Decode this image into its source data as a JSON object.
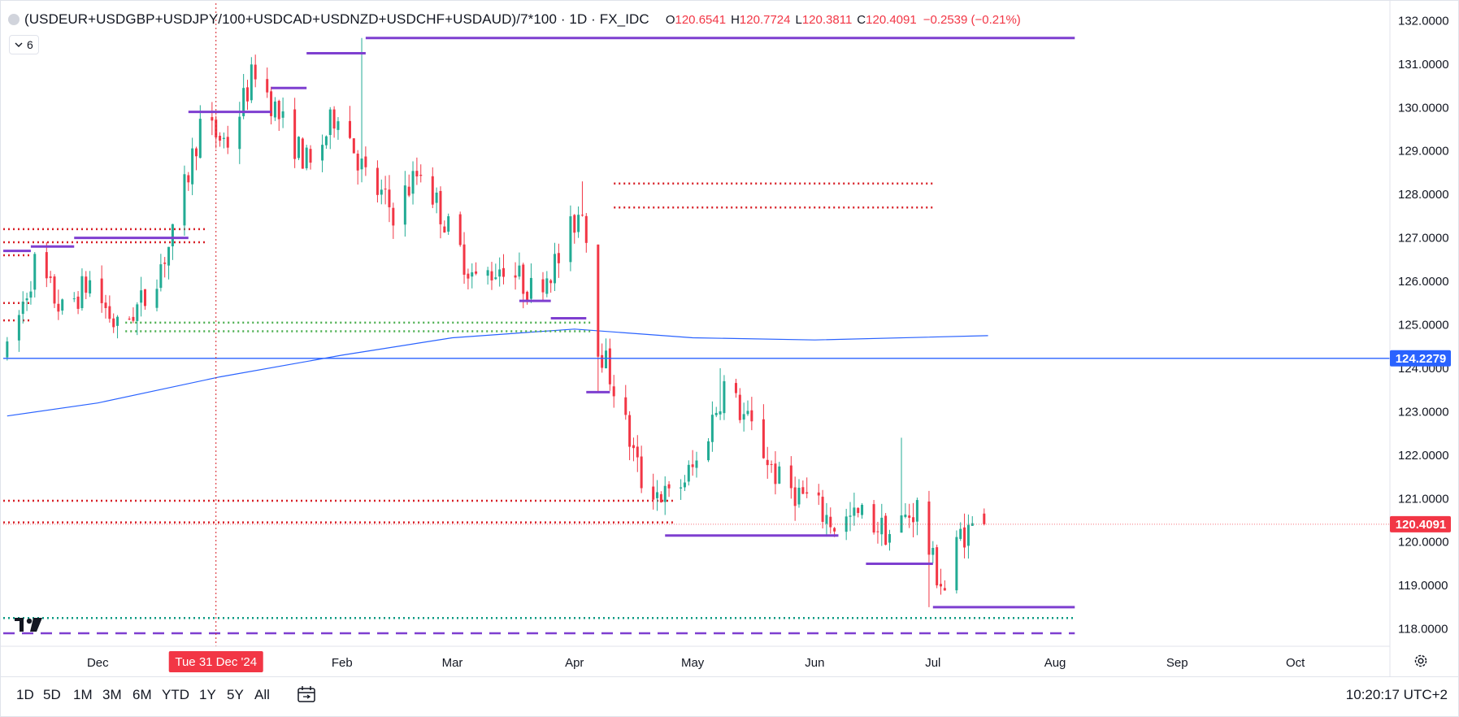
{
  "header": {
    "symbol": "(USDEUR+USDGBP+USDJPY/100+USDCAD+USDNZD+USDCHF+USDAUD)/7*100 · 1D · FX_IDC",
    "open_label": "O",
    "open": "120.6541",
    "high_label": "H",
    "high": "120.7724",
    "low_label": "L",
    "low": "120.3811",
    "close_label": "C",
    "close": "120.4091",
    "change": "−0.2539 (−0.21%)"
  },
  "indicators_button": {
    "icon": "chevron-down-icon",
    "count": "6"
  },
  "price_axis": {
    "labels": [
      "132.0000",
      "131.0000",
      "130.0000",
      "129.0000",
      "128.0000",
      "127.0000",
      "126.0000",
      "125.0000",
      "124.0000",
      "123.0000",
      "122.0000",
      "121.0000",
      "120.0000",
      "119.0000",
      "118.0000"
    ],
    "hline_label": "124.2279",
    "last_price_label": "120.4091"
  },
  "time_axis": {
    "labels": [
      "Dec",
      "Feb",
      "Mar",
      "Apr",
      "May",
      "Jun",
      "Jul",
      "Aug",
      "Sep",
      "Oct"
    ],
    "crosshair_label": "Tue 31 Dec '24"
  },
  "timeframes": [
    "1D",
    "5D",
    "1M",
    "3M",
    "6M",
    "YTD",
    "1Y",
    "5Y",
    "All"
  ],
  "clock": "10:20:17 UTC+2",
  "colors": {
    "up": "#22ab94",
    "down": "#f23645",
    "level": "#7e3fd0",
    "hline": "#2962ff",
    "ma": "#2962ff",
    "dot_red": "#d81f26",
    "dot_green": "#4caf50",
    "dot_teal": "#089981"
  },
  "chart_data": {
    "type": "candlestick",
    "title": "(USDEUR+USDGBP+USDJPY/100+USDCAD+USDNZD+USDCHF+USDAUD)/7*100",
    "interval": "1D",
    "ylim": [
      117.6,
      132.4
    ],
    "x_range": [
      "2024-11-07",
      "2025-10-25"
    ],
    "last": {
      "open": 120.6541,
      "high": 120.7724,
      "low": 120.3811,
      "close": 120.4091
    },
    "horizontal_line": 124.2279,
    "ohlc_path": [
      {
        "date": "2024-11-08",
        "price": 124.3
      },
      {
        "date": "2024-11-15",
        "price": 126.4
      },
      {
        "date": "2024-11-22",
        "price": 125.3
      },
      {
        "date": "2024-11-29",
        "price": 126.0
      },
      {
        "date": "2024-12-06",
        "price": 124.9
      },
      {
        "date": "2024-12-13",
        "price": 125.6
      },
      {
        "date": "2024-12-20",
        "price": 127.0
      },
      {
        "date": "2024-12-27",
        "price": 129.6
      },
      {
        "date": "2025-01-03",
        "price": 129.2
      },
      {
        "date": "2025-01-10",
        "price": 130.9
      },
      {
        "date": "2025-01-17",
        "price": 129.6
      },
      {
        "date": "2025-01-24",
        "price": 128.6
      },
      {
        "date": "2025-01-31",
        "price": 130.0
      },
      {
        "date": "2025-02-07",
        "price": 128.4
      },
      {
        "date": "2025-02-14",
        "price": 127.6
      },
      {
        "date": "2025-02-21",
        "price": 128.6
      },
      {
        "date": "2025-02-28",
        "price": 127.2
      },
      {
        "date": "2025-03-07",
        "price": 126.0
      },
      {
        "date": "2025-03-14",
        "price": 126.4
      },
      {
        "date": "2025-03-21",
        "price": 125.8
      },
      {
        "date": "2025-03-28",
        "price": 126.5
      },
      {
        "date": "2025-04-03",
        "price": 127.8
      },
      {
        "date": "2025-04-07",
        "price": 124.6
      },
      {
        "date": "2025-04-11",
        "price": 123.6
      },
      {
        "date": "2025-04-18",
        "price": 121.4
      },
      {
        "date": "2025-04-25",
        "price": 121.0
      },
      {
        "date": "2025-05-02",
        "price": 121.8
      },
      {
        "date": "2025-05-09",
        "price": 123.6
      },
      {
        "date": "2025-05-16",
        "price": 122.6
      },
      {
        "date": "2025-05-23",
        "price": 121.4
      },
      {
        "date": "2025-05-30",
        "price": 121.0
      },
      {
        "date": "2025-06-06",
        "price": 120.4
      },
      {
        "date": "2025-06-13",
        "price": 120.6
      },
      {
        "date": "2025-06-20",
        "price": 120.2
      },
      {
        "date": "2025-06-27",
        "price": 120.8
      },
      {
        "date": "2025-07-01",
        "price": 119.5
      },
      {
        "date": "2025-07-04",
        "price": 118.9
      },
      {
        "date": "2025-07-08",
        "price": 120.2
      },
      {
        "date": "2025-07-14",
        "price": 120.4
      }
    ],
    "moving_average": [
      {
        "date": "2024-11-08",
        "value": 122.9
      },
      {
        "date": "2024-12-01",
        "value": 123.2
      },
      {
        "date": "2025-01-01",
        "value": 123.8
      },
      {
        "date": "2025-02-01",
        "value": 124.3
      },
      {
        "date": "2025-03-01",
        "value": 124.7
      },
      {
        "date": "2025-04-01",
        "value": 124.9
      },
      {
        "date": "2025-05-01",
        "value": 124.7
      },
      {
        "date": "2025-06-01",
        "value": 124.65
      },
      {
        "date": "2025-07-15",
        "value": 124.75
      }
    ],
    "levels": [
      {
        "date_from": "2024-11-07",
        "date_to": "2024-11-14",
        "price": 126.7
      },
      {
        "date_from": "2024-11-14",
        "date_to": "2024-11-25",
        "price": 126.8
      },
      {
        "date_from": "2024-11-25",
        "date_to": "2024-12-24",
        "price": 127.0
      },
      {
        "date_from": "2024-12-24",
        "date_to": "2025-01-14",
        "price": 129.9
      },
      {
        "date_from": "2025-01-14",
        "date_to": "2025-01-23",
        "price": 130.45
      },
      {
        "date_from": "2025-01-23",
        "date_to": "2025-02-07",
        "price": 131.25
      },
      {
        "date_from": "2025-02-07",
        "date_to": "2025-08-06",
        "price": 131.6
      },
      {
        "date_from": "2025-03-18",
        "date_to": "2025-03-26",
        "price": 125.55
      },
      {
        "date_from": "2025-03-26",
        "date_to": "2025-04-04",
        "price": 125.15
      },
      {
        "date_from": "2025-04-04",
        "date_to": "2025-04-10",
        "price": 123.45
      },
      {
        "date_from": "2025-04-24",
        "date_to": "2025-06-07",
        "price": 120.15
      },
      {
        "date_from": "2025-06-14",
        "date_to": "2025-07-01",
        "price": 119.5
      },
      {
        "date_from": "2025-07-01",
        "date_to": "2025-08-06",
        "price": 118.5
      }
    ],
    "dotted_levels": [
      {
        "date_from": "2024-11-07",
        "date_to": "2024-12-29",
        "price": 127.2,
        "color": "red"
      },
      {
        "date_from": "2024-11-07",
        "date_to": "2024-12-29",
        "price": 126.9,
        "color": "red"
      },
      {
        "date_from": "2024-11-07",
        "date_to": "2024-11-14",
        "price": 126.6,
        "color": "red"
      },
      {
        "date_from": "2024-11-07",
        "date_to": "2024-11-14",
        "price": 125.5,
        "color": "red"
      },
      {
        "date_from": "2024-11-07",
        "date_to": "2024-11-14",
        "price": 125.1,
        "color": "red"
      },
      {
        "date_from": "2024-12-08",
        "date_to": "2025-04-05",
        "price": 125.05,
        "color": "green"
      },
      {
        "date_from": "2024-12-08",
        "date_to": "2025-04-05",
        "price": 124.85,
        "color": "green"
      },
      {
        "date_from": "2025-04-11",
        "date_to": "2025-07-01",
        "price": 128.25,
        "color": "red"
      },
      {
        "date_from": "2025-04-11",
        "date_to": "2025-07-01",
        "price": 127.7,
        "color": "red"
      },
      {
        "date_from": "2024-11-07",
        "date_to": "2025-04-26",
        "price": 120.95,
        "color": "red"
      },
      {
        "date_from": "2024-11-07",
        "date_to": "2025-04-26",
        "price": 120.45,
        "color": "red"
      },
      {
        "date_from": "2024-11-07",
        "date_to": "2025-08-06",
        "price": 118.25,
        "color": "teal"
      }
    ],
    "dashed_levels": [
      {
        "date_from": "2024-11-07",
        "date_to": "2025-08-06",
        "price": 117.9
      }
    ]
  }
}
